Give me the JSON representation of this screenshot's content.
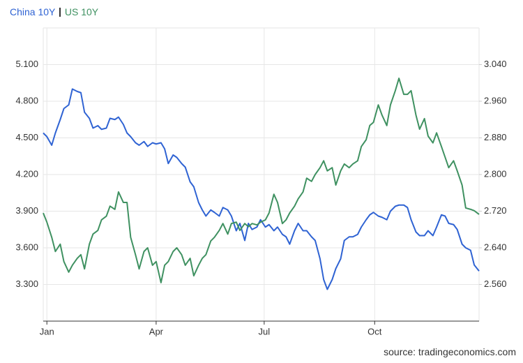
{
  "chart_data": {
    "type": "line",
    "source": "source: tradingeconomics.com",
    "x": [
      0,
      3,
      7,
      10,
      14,
      17,
      21,
      24,
      28,
      31,
      34,
      38,
      41,
      45,
      48,
      52,
      55,
      59,
      62,
      66,
      69,
      72,
      76,
      79,
      83,
      86,
      90,
      93,
      97,
      100,
      103,
      107,
      110,
      114,
      117,
      121,
      124,
      128,
      131,
      134,
      138,
      141,
      145,
      148,
      152,
      155,
      159,
      162,
      166,
      169,
      172,
      176,
      179,
      183,
      186,
      190,
      193,
      197,
      200,
      203,
      207,
      210,
      214,
      217,
      221,
      224,
      228,
      231,
      234,
      238,
      241,
      245,
      248,
      252,
      255,
      259,
      262,
      266,
      269,
      272,
      276,
      279,
      283,
      286,
      290,
      293,
      297,
      300,
      303,
      307,
      310,
      314,
      317,
      321,
      324,
      328,
      331,
      334,
      338,
      341,
      345,
      348,
      352,
      355,
      359
    ],
    "xlim": [
      0,
      359
    ],
    "xticks": [
      {
        "value": 3,
        "label": "Jan"
      },
      {
        "value": 93,
        "label": "Apr"
      },
      {
        "value": 182,
        "label": "Jul"
      },
      {
        "value": 273,
        "label": "Oct"
      }
    ],
    "ylim": [
      3.0,
      5.4
    ],
    "yticks": [
      {
        "value": 3.3,
        "label": "3.300"
      },
      {
        "value": 3.6,
        "label": "3.600"
      },
      {
        "value": 3.9,
        "label": "3.900"
      },
      {
        "value": 4.2,
        "label": "4.200"
      },
      {
        "value": 4.5,
        "label": "4.500"
      },
      {
        "value": 4.8,
        "label": "4.800"
      },
      {
        "value": 5.1,
        "label": "5.100"
      }
    ],
    "y2lim": [
      2.48,
      3.12
    ],
    "y2ticks": [
      {
        "value": 2.56,
        "label": "2.560"
      },
      {
        "value": 2.64,
        "label": "2.640"
      },
      {
        "value": 2.72,
        "label": "2.720"
      },
      {
        "value": 2.8,
        "label": "2.800"
      },
      {
        "value": 2.88,
        "label": "2.880"
      },
      {
        "value": 2.96,
        "label": "2.960"
      },
      {
        "value": 3.04,
        "label": "3.040"
      }
    ],
    "grid": true,
    "series": [
      {
        "name": "China 10Y",
        "color": "#2f63d3",
        "axis": "y",
        "values": [
          4.54,
          4.51,
          4.44,
          4.54,
          4.65,
          4.74,
          4.77,
          4.9,
          4.88,
          4.87,
          4.71,
          4.66,
          4.58,
          4.6,
          4.57,
          4.58,
          4.66,
          4.65,
          4.67,
          4.61,
          4.54,
          4.51,
          4.46,
          4.44,
          4.47,
          4.43,
          4.46,
          4.45,
          4.46,
          4.41,
          4.29,
          4.36,
          4.34,
          4.29,
          4.26,
          4.14,
          4.1,
          3.97,
          3.91,
          3.86,
          3.91,
          3.89,
          3.86,
          3.93,
          3.91,
          3.86,
          3.74,
          3.8,
          3.66,
          3.8,
          3.75,
          3.77,
          3.83,
          3.77,
          3.79,
          3.74,
          3.77,
          3.71,
          3.69,
          3.63,
          3.74,
          3.8,
          3.74,
          3.74,
          3.69,
          3.66,
          3.51,
          3.34,
          3.26,
          3.34,
          3.43,
          3.51,
          3.66,
          3.69,
          3.69,
          3.71,
          3.77,
          3.83,
          3.87,
          3.89,
          3.86,
          3.85,
          3.83,
          3.9,
          3.94,
          3.95,
          3.95,
          3.93,
          3.83,
          3.73,
          3.7,
          3.7,
          3.74,
          3.7,
          3.77,
          3.87,
          3.86,
          3.8,
          3.79,
          3.75,
          3.63,
          3.6,
          3.58,
          3.46,
          3.41
        ]
      },
      {
        "name": "US 10Y",
        "color": "#3f9161",
        "axis": "y2",
        "values": [
          2.716,
          2.696,
          2.663,
          2.632,
          2.648,
          2.61,
          2.587,
          2.602,
          2.617,
          2.625,
          2.594,
          2.648,
          2.67,
          2.678,
          2.701,
          2.709,
          2.731,
          2.724,
          2.762,
          2.739,
          2.739,
          2.663,
          2.625,
          2.594,
          2.632,
          2.64,
          2.602,
          2.61,
          2.564,
          2.602,
          2.61,
          2.632,
          2.64,
          2.625,
          2.602,
          2.617,
          2.579,
          2.602,
          2.617,
          2.625,
          2.655,
          2.663,
          2.678,
          2.693,
          2.67,
          2.693,
          2.696,
          2.678,
          2.693,
          2.686,
          2.693,
          2.69,
          2.696,
          2.701,
          2.716,
          2.757,
          2.739,
          2.693,
          2.701,
          2.716,
          2.731,
          2.747,
          2.762,
          2.792,
          2.785,
          2.8,
          2.815,
          2.83,
          2.808,
          2.815,
          2.777,
          2.808,
          2.823,
          2.815,
          2.823,
          2.83,
          2.861,
          2.876,
          2.907,
          2.914,
          2.952,
          2.93,
          2.907,
          2.952,
          2.983,
          3.01,
          2.975,
          2.975,
          2.983,
          2.93,
          2.899,
          2.922,
          2.884,
          2.869,
          2.891,
          2.861,
          2.838,
          2.815,
          2.83,
          2.808,
          2.777,
          2.727,
          2.724,
          2.721,
          2.713
        ]
      }
    ]
  }
}
